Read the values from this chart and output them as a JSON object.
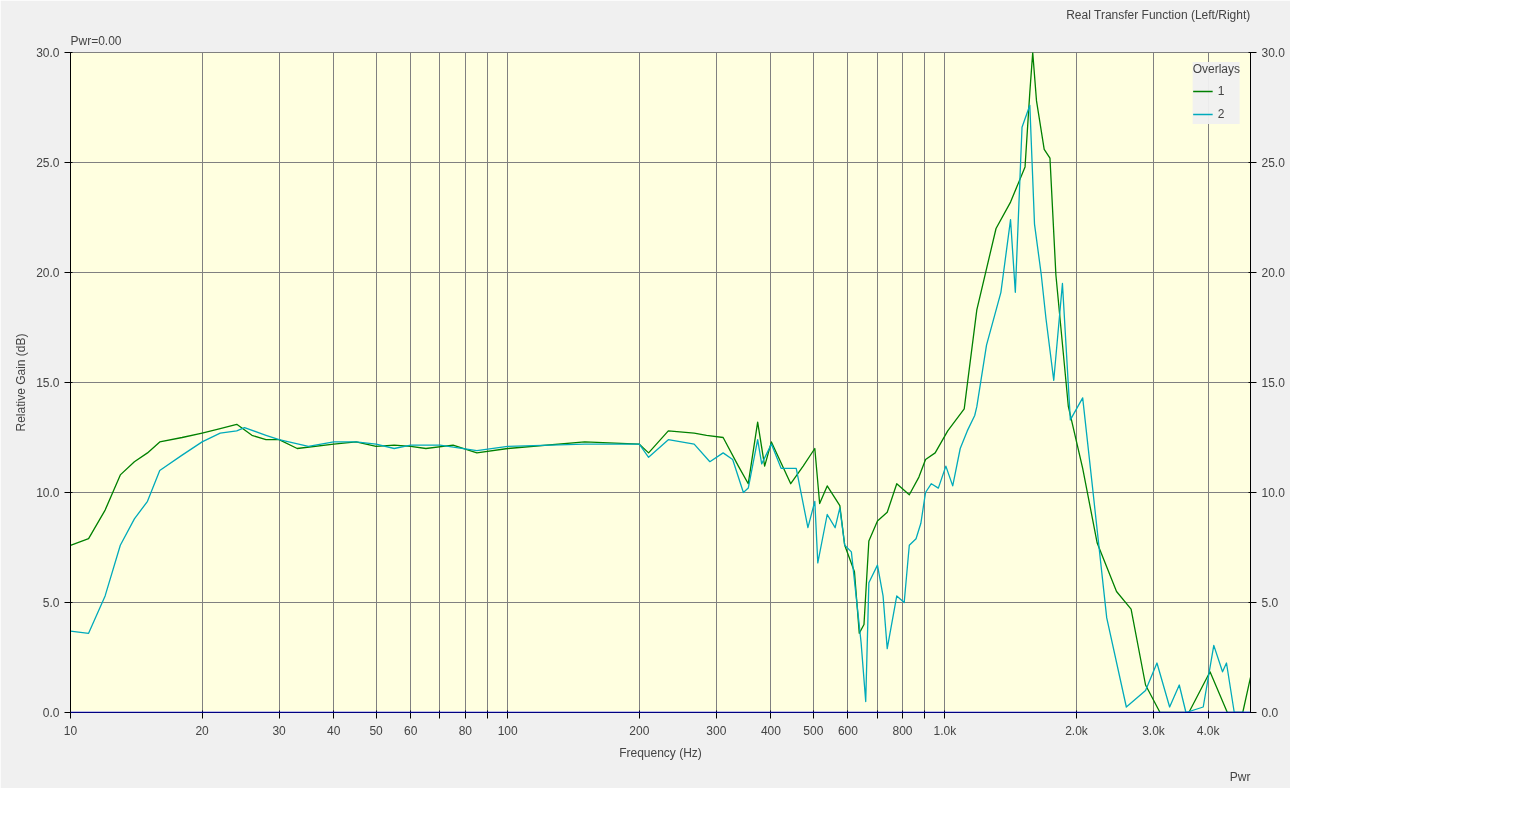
{
  "chart_data": {
    "type": "line",
    "title": "Real Transfer Function (Left/Right)",
    "xlabel": "Frequency (Hz)",
    "ylabel": "Relative Gain (dB)",
    "legend_title": "Overlays",
    "annotations": [
      "Pwr=0.00",
      "Pwr"
    ],
    "log": "x",
    "grid": true,
    "legend": "top right",
    "line_style": "solid",
    "marker": "none",
    "xlim": [
      10,
      5000
    ],
    "xticks": [
      10,
      20,
      30,
      40,
      50,
      60,
      {
        "value": 70,
        "label": null
      },
      80,
      {
        "value": 90,
        "label": null
      },
      100,
      200,
      300,
      400,
      500,
      600,
      {
        "value": 700,
        "label": null
      },
      800,
      {
        "value": 900,
        "label": null
      },
      {
        "value": 1000,
        "label": "1.0k"
      },
      {
        "value": 2000,
        "label": "2.0k"
      },
      {
        "value": 3000,
        "label": "3.0k"
      },
      {
        "value": 4000,
        "label": "4.0k"
      }
    ],
    "ylim": [
      0,
      30
    ],
    "yticks": [
      {
        "value": 0,
        "label": "0.0"
      },
      {
        "value": 5,
        "label": "5.0"
      },
      {
        "value": 10,
        "label": "10.0"
      },
      {
        "value": 15,
        "label": "15.0"
      },
      {
        "value": 20,
        "label": "20.0"
      },
      {
        "value": 25,
        "label": "25.0"
      },
      {
        "value": 30,
        "label": "30.0"
      }
    ],
    "y2lim": [
      0,
      30
    ],
    "y2ticks": [
      {
        "value": 0,
        "label": "0.0"
      },
      {
        "value": 5,
        "label": "5.0"
      },
      {
        "value": 10,
        "label": "10.0"
      },
      {
        "value": 15,
        "label": "15.0"
      },
      {
        "value": 20,
        "label": "20.0"
      },
      {
        "value": 25,
        "label": "25.0"
      },
      {
        "value": 30,
        "label": "30.0"
      }
    ],
    "ref_lines": [
      {
        "axis": "y",
        "value": 0,
        "color": "#0000ff"
      }
    ],
    "series": [
      {
        "name": "1",
        "color": "#008000",
        "x": [
          10,
          11,
          12,
          13,
          14,
          15,
          16,
          18,
          20,
          22,
          24,
          26,
          28,
          30,
          33,
          40,
          45,
          50,
          55,
          60,
          65,
          75,
          85,
          100,
          150,
          200,
          210,
          233,
          267,
          285,
          311,
          337,
          355,
          373,
          387,
          401,
          444,
          474,
          504,
          517,
          538,
          575,
          590,
          621,
          637,
          653,
          670,
          701,
          738,
          776,
          829,
          872,
          903,
          950,
          1015,
          1107,
          1125,
          1183,
          1309,
          1413,
          1525,
          1564,
          1588,
          1620,
          1687,
          1739,
          1794,
          1916,
          2066,
          2230,
          2469,
          2666,
          2877,
          3105,
          3614,
          4040,
          4426,
          4800,
          5000
        ],
        "values": [
          7.6,
          7.9,
          9.2,
          10.8,
          11.4,
          11.8,
          12.3,
          12.5,
          12.7,
          12.9,
          13.1,
          12.6,
          12.4,
          12.4,
          12.0,
          12.2,
          12.3,
          12.1,
          12.15,
          12.1,
          12.0,
          12.15,
          11.8,
          12.0,
          12.3,
          12.2,
          11.8,
          12.8,
          12.7,
          12.6,
          12.5,
          11.2,
          10.4,
          13.2,
          11.2,
          12.3,
          10.4,
          11.2,
          12.0,
          9.5,
          10.3,
          9.4,
          7.6,
          6.4,
          3.6,
          4.0,
          7.8,
          8.7,
          9.1,
          10.4,
          9.9,
          10.7,
          11.5,
          11.8,
          12.8,
          13.8,
          14.9,
          18.3,
          22.0,
          23.2,
          24.8,
          28.2,
          30.0,
          27.8,
          25.6,
          25.2,
          19.9,
          13.9,
          11.1,
          7.7,
          5.5,
          4.7,
          1.25,
          0,
          0,
          1.85,
          0,
          0,
          1.6
        ]
      },
      {
        "name": "2",
        "color": "#00aabb",
        "x": [
          10,
          11,
          12,
          13,
          14,
          15,
          16,
          18,
          20,
          22,
          24,
          25,
          28,
          30,
          35,
          40,
          45,
          50,
          55,
          60,
          70,
          85,
          100,
          150,
          200,
          210,
          233,
          267,
          290,
          311,
          327,
          346,
          355,
          373,
          381,
          401,
          422,
          457,
          486,
          504,
          512,
          538,
          561,
          575,
          590,
          611,
          643,
          659,
          670,
          701,
          722,
          738,
          776,
          807,
          829,
          859,
          881,
          903,
          931,
          966,
          1005,
          1042,
          1084,
          1125,
          1170,
          1183,
          1245,
          1343,
          1413,
          1449,
          1501,
          1564,
          1603,
          1661,
          1703,
          1774,
          1857,
          1936,
          2066,
          2174,
          2345,
          2600,
          2877,
          3055,
          3266,
          3436,
          3559,
          3898,
          4121,
          4315,
          4406,
          4590,
          5000
        ],
        "values": [
          3.7,
          3.6,
          5.3,
          7.6,
          8.8,
          9.6,
          11.0,
          11.7,
          12.3,
          12.7,
          12.8,
          12.95,
          12.6,
          12.4,
          12.1,
          12.3,
          12.3,
          12.2,
          12.0,
          12.15,
          12.15,
          11.9,
          12.1,
          12.2,
          12.2,
          11.6,
          12.4,
          12.2,
          11.4,
          11.8,
          11.5,
          10.0,
          10.2,
          12.4,
          11.3,
          12.2,
          11.1,
          11.1,
          8.4,
          9.6,
          6.8,
          9.0,
          8.4,
          9.3,
          7.6,
          7.3,
          3.2,
          0.5,
          5.9,
          6.7,
          5.3,
          2.9,
          5.3,
          5.0,
          7.6,
          7.9,
          8.6,
          10.0,
          10.4,
          10.2,
          11.2,
          10.3,
          12.0,
          12.8,
          13.5,
          13.9,
          16.7,
          19.1,
          22.4,
          19.1,
          26.6,
          27.6,
          22.2,
          19.9,
          17.9,
          15.1,
          19.5,
          13.3,
          14.3,
          10.3,
          4.3,
          0.25,
          1.0,
          2.25,
          0.25,
          1.25,
          0,
          0.25,
          3.05,
          1.85,
          2.25,
          0,
          0
        ]
      }
    ]
  }
}
